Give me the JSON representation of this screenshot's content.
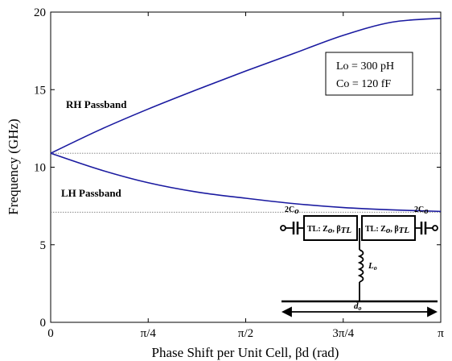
{
  "chart_data": {
    "type": "line",
    "title": "",
    "xlabel": "Phase Shift per Unit Cell, βd (rad)",
    "ylabel": "Frequency (GHz)",
    "xlim": [
      0,
      3.14159
    ],
    "ylim": [
      0,
      20
    ],
    "x_ticks": [
      0,
      0.7854,
      1.5708,
      2.3562,
      3.14159
    ],
    "x_tick_labels": [
      "0",
      "π/4",
      "π/2",
      "3π/4",
      "π"
    ],
    "y_ticks": [
      0,
      5,
      10,
      15,
      20
    ],
    "y_tick_labels": [
      "0",
      "5",
      "10",
      "15",
      "20"
    ],
    "grid": false,
    "reference_lines": [
      {
        "y": 10.9,
        "style": "dotted"
      },
      {
        "y": 7.1,
        "style": "dotted"
      }
    ],
    "series": [
      {
        "name": "RH Passband",
        "color": "#1a1aa0",
        "x": [
          0,
          0.3927,
          0.7854,
          1.1781,
          1.5708,
          1.9635,
          2.3562,
          2.7489,
          3.14159
        ],
        "y": [
          10.9,
          12.4,
          13.75,
          15.0,
          16.2,
          17.35,
          18.5,
          19.35,
          19.6
        ]
      },
      {
        "name": "LH Passband",
        "color": "#1a1aa0",
        "x": [
          0,
          0.3927,
          0.7854,
          1.1781,
          1.5708,
          1.9635,
          2.3562,
          2.7489,
          3.14159
        ],
        "y": [
          10.9,
          9.85,
          9.0,
          8.4,
          8.0,
          7.65,
          7.4,
          7.25,
          7.15
        ]
      }
    ],
    "annotations": {
      "rh_label": "RH Passband",
      "lh_label": "LH Passband",
      "legend_lines": [
        "Lo = 300 pH",
        "Co = 120 fF"
      ]
    },
    "circuit_labels": {
      "series_cap": "2C",
      "series_cap_sub": "o",
      "tl_text": "TL: Z",
      "tl_sub": "o",
      "tl_beta": "β",
      "tl_beta_sub": "TL",
      "inductor": "L",
      "inductor_sub": "o",
      "length": "d",
      "length_sub": "o"
    }
  }
}
